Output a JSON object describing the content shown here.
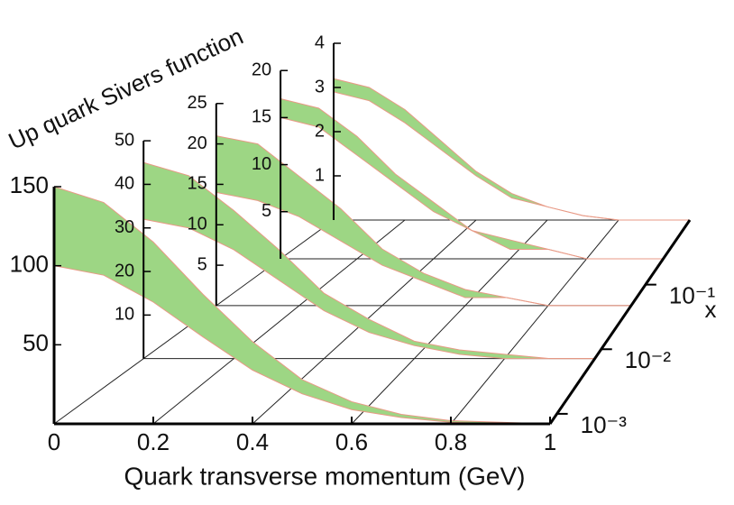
{
  "chart_data": {
    "type": "band",
    "ylabel": "Up quark Sivers function",
    "xlabel": "Quark transverse momentum (GeV)",
    "zlabel": "x",
    "x": [
      0,
      0.1,
      0.2,
      0.3,
      0.4,
      0.5,
      0.6,
      0.7,
      0.8,
      0.9,
      1
    ],
    "xlim": [
      0,
      1
    ],
    "xticks": [
      0,
      0.2,
      0.4,
      0.6,
      0.8,
      1
    ],
    "zscale": "log",
    "zlim": [
      0.0007,
      1
    ],
    "zticks": [
      {
        "value": 0.001,
        "label": "10⁻³"
      },
      {
        "value": 0.01,
        "label": "10⁻²"
      },
      {
        "value": 0.1,
        "label": "10⁻¹"
      }
    ],
    "color": "#9dd684",
    "edge_color": "#e89a86",
    "panels": [
      {
        "ylim": [
          0,
          150
        ],
        "yticks": [
          50,
          100,
          150
        ],
        "upper": [
          150,
          140,
          115,
          82,
          52,
          28,
          14,
          6,
          2,
          1,
          0
        ],
        "lower": [
          100,
          94,
          77,
          55,
          34,
          19,
          9,
          4,
          1,
          0,
          0
        ]
      },
      {
        "ylim": [
          0,
          50
        ],
        "yticks": [
          10,
          20,
          30,
          40,
          50
        ],
        "upper": [
          45,
          42,
          34,
          25,
          15,
          9,
          4,
          2,
          1,
          0,
          0
        ],
        "lower": [
          32,
          30,
          25,
          18,
          11,
          6,
          3,
          1,
          0,
          0,
          0
        ]
      },
      {
        "ylim": [
          0,
          25
        ],
        "yticks": [
          5,
          10,
          15,
          20,
          25
        ],
        "upper": [
          21,
          20,
          16,
          12,
          7,
          4,
          2,
          1,
          0,
          0,
          0
        ],
        "lower": [
          14,
          13,
          11,
          8,
          5,
          3,
          1,
          1,
          0,
          0,
          0
        ]
      },
      {
        "ylim": [
          0,
          20
        ],
        "yticks": [
          5,
          10,
          15,
          20
        ],
        "upper": [
          17,
          16,
          13,
          9,
          6,
          3,
          2,
          1,
          0,
          0,
          0
        ],
        "lower": [
          15,
          14,
          11,
          8,
          5,
          3,
          1,
          1,
          0,
          0,
          0
        ]
      },
      {
        "ylim": [
          0,
          4
        ],
        "yticks": [
          1,
          2,
          3,
          4
        ],
        "upper": [
          3.2,
          3.0,
          2.5,
          1.8,
          1.1,
          0.6,
          0.3,
          0.1,
          0,
          0,
          0
        ],
        "lower": [
          2.9,
          2.7,
          2.2,
          1.6,
          1.0,
          0.5,
          0.3,
          0.1,
          0,
          0,
          0
        ]
      }
    ]
  }
}
